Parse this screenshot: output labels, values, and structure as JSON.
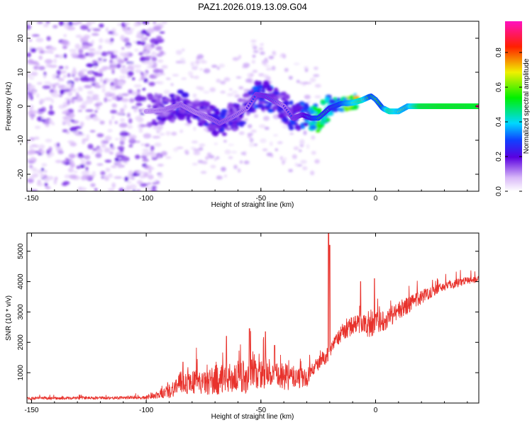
{
  "title": "PAZ1.2026.019.13.09.G04",
  "colorbar": {
    "label": "Normalized spectral amplitude",
    "ticks": [
      "0.0",
      "0.2",
      "0.4",
      "0.6",
      "0.8"
    ],
    "tick_values": [
      0.0,
      0.2,
      0.4,
      0.6,
      0.8
    ],
    "range": [
      0.0,
      0.98
    ]
  },
  "chart_data": [
    {
      "type": "heatmap",
      "name": "spectrogram",
      "xlabel": "Height of straight line (km)",
      "ylabel": "Frequency (Hz)",
      "xlim": [
        -152,
        45
      ],
      "ylim": [
        -25,
        25
      ],
      "xticks": [
        -150,
        -100,
        -50,
        0
      ],
      "xtick_labels": [
        "-150",
        "-100",
        "-50",
        "0"
      ],
      "yticks": [
        20,
        10,
        0,
        -10,
        -20
      ],
      "ytick_labels": [
        "20",
        "10",
        "0",
        "-10",
        "-20"
      ],
      "ridge": {
        "note": "dominant frequency ridge (Hz) vs height (km)",
        "x": [
          -100,
          -92,
          -85,
          -78,
          -72,
          -68,
          -62,
          -56,
          -52,
          -48,
          -44,
          -40,
          -36,
          -32,
          -28,
          -25,
          -20,
          -15,
          -10,
          -6,
          -2,
          0,
          3,
          6,
          10,
          14,
          20,
          30,
          40,
          45
        ],
        "y": [
          -1.5,
          -1.0,
          0.5,
          -2.0,
          -3.5,
          -5.0,
          -3.0,
          -0.5,
          3.5,
          3.0,
          1.5,
          0.0,
          -3.5,
          -2.5,
          -3.5,
          -3.5,
          -0.5,
          0.8,
          1.0,
          1.8,
          3.0,
          2.0,
          -0.5,
          -1.5,
          -1.5,
          0.0,
          0.0,
          0.0,
          0.0,
          0.0
        ],
        "amp": [
          0.18,
          0.22,
          0.25,
          0.22,
          0.25,
          0.28,
          0.25,
          0.22,
          0.3,
          0.32,
          0.3,
          0.22,
          0.3,
          0.32,
          0.45,
          0.55,
          0.45,
          0.55,
          0.7,
          0.8,
          0.55,
          0.6,
          0.55,
          0.8,
          0.7,
          0.65,
          0.92,
          0.95,
          0.95,
          0.95
        ]
      }
    },
    {
      "type": "line",
      "name": "snr",
      "xlabel": "Height of straight line (km)",
      "ylabel": "SNR (10 * v/v)",
      "xlim": [
        -152,
        45
      ],
      "ylim": [
        0,
        5600
      ],
      "xticks": [
        -150,
        -100,
        -50,
        0
      ],
      "xtick_labels": [
        "-150",
        "-100",
        "-50",
        "0"
      ],
      "yticks": [
        1000,
        2000,
        3000,
        4000,
        5000
      ],
      "ytick_labels": [
        "1000",
        "2000",
        "3000",
        "4000",
        "5000"
      ],
      "series": [
        {
          "name": "SNR",
          "color": "#e8322c",
          "x": [
            -152,
            -140,
            -130,
            -120,
            -110,
            -100,
            -95,
            -90,
            -85,
            -80,
            -75,
            -70,
            -65,
            -60,
            -55,
            -50,
            -45,
            -40,
            -35,
            -30,
            -28,
            -25,
            -22,
            -20,
            -18,
            -15,
            -10,
            -6,
            -3,
            0,
            5,
            10,
            15,
            20,
            25,
            30,
            35,
            40,
            45
          ],
          "y": [
            150,
            160,
            165,
            170,
            175,
            180,
            250,
            400,
            650,
            700,
            650,
            750,
            800,
            850,
            900,
            950,
            900,
            850,
            850,
            800,
            1050,
            1300,
            1500,
            1700,
            1950,
            2300,
            2550,
            2650,
            2500,
            2600,
            2800,
            3050,
            3250,
            3500,
            3700,
            3850,
            3950,
            4050,
            4050
          ],
          "noise": [
            60,
            60,
            60,
            60,
            60,
            70,
            150,
            300,
            500,
            500,
            450,
            650,
            600,
            700,
            750,
            600,
            500,
            600,
            450,
            400,
            300,
            300,
            300,
            300,
            300,
            350,
            400,
            400,
            450,
            450,
            450,
            400,
            350,
            300,
            250,
            200,
            200,
            150,
            150
          ],
          "spikes": [
            {
              "x": -20.5,
              "y": 5600
            },
            {
              "x": -20.0,
              "y": 5200
            },
            {
              "x": -0.5,
              "y": 4100
            },
            {
              "x": -6.5,
              "y": 4000
            },
            {
              "x": -55,
              "y": 2450
            },
            {
              "x": -65,
              "y": 2200
            },
            {
              "x": -48,
              "y": 2350
            },
            {
              "x": -84,
              "y": 1350
            },
            {
              "x": -44,
              "y": 1900
            }
          ]
        }
      ]
    }
  ]
}
